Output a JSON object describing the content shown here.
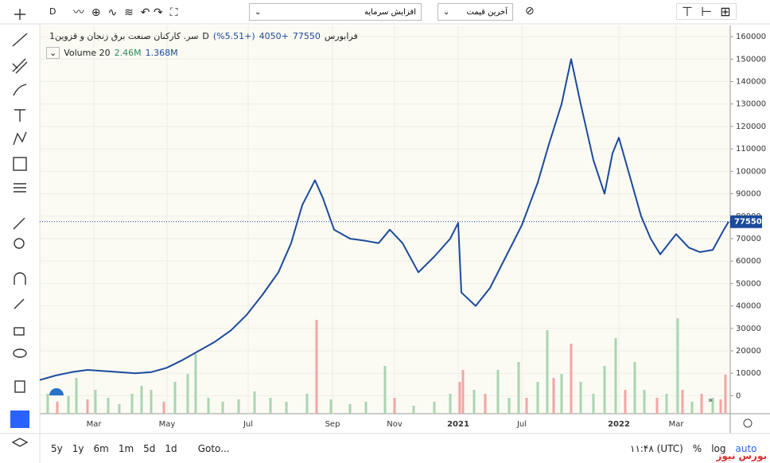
{
  "toolbar": {
    "interval": "D",
    "corporate_actions": "افزایش سرمایه",
    "price_type": "آخرین قیمت"
  },
  "legend": {
    "symbol": "سر. کارکنان صنعت برق زنجان و قزوین",
    "interval": "1D",
    "exchange": "فرابورس",
    "change": "+4050",
    "change_pct": "(+5.51%)",
    "volume_label": "Volume 20",
    "volume_last": "2.46M",
    "volume_ma": "1.368M"
  },
  "chart_data": {
    "type": "line",
    "x": [
      0,
      10,
      20,
      30,
      40,
      50,
      60,
      70,
      80,
      90,
      100,
      110,
      120,
      130,
      140,
      150,
      158,
      165,
      173,
      178,
      185,
      195,
      205,
      213,
      220,
      228,
      238,
      248,
      258,
      263,
      265,
      274,
      283,
      293,
      303,
      313,
      320,
      328,
      334,
      340,
      348,
      355,
      360,
      364,
      370,
      378,
      384,
      390,
      400,
      408,
      415,
      423,
      430,
      433
    ],
    "series": [
      {
        "color": "#1b4a9c",
        "values": [
          7000,
          9000,
          10500,
          11500,
          11000,
          10500,
          10000,
          10500,
          12500,
          16000,
          20000,
          24000,
          29000,
          36000,
          45000,
          55000,
          68000,
          85000,
          96000,
          88000,
          74000,
          70000,
          69000,
          68000,
          74000,
          68000,
          55000,
          62000,
          70000,
          77000,
          46000,
          40000,
          48000,
          62000,
          76000,
          95000,
          112000,
          130000,
          150000,
          130000,
          105000,
          90000,
          108000,
          115000,
          100000,
          80000,
          70000,
          63000,
          72000,
          66000,
          64000,
          65000,
          74000,
          77550
        ]
      }
    ],
    "last_price": 77550,
    "volume": {
      "x": [
        5,
        11,
        18,
        23,
        30,
        35,
        43,
        50,
        58,
        64,
        70,
        78,
        85,
        93,
        98,
        106,
        115,
        125,
        135,
        145,
        155,
        168,
        174,
        183,
        195,
        205,
        217,
        223,
        235,
        248,
        258,
        264,
        266,
        273,
        280,
        288,
        295,
        301,
        306,
        313,
        319,
        323,
        328,
        334,
        340,
        348,
        355,
        362,
        368,
        374,
        380,
        388,
        394,
        401,
        404,
        410,
        416,
        423,
        428,
        431
      ],
      "values": [
        1.25,
        0.75,
        1.1,
        2.25,
        0.9,
        1.5,
        1,
        0.6,
        1.25,
        1.75,
        1.5,
        0.75,
        2,
        2.5,
        3.75,
        1,
        0.75,
        0.9,
        1.4,
        1,
        0.75,
        1.25,
        5.9,
        0.9,
        0.6,
        0.75,
        3,
        1,
        0.5,
        0.75,
        1.25,
        2,
        2.75,
        1.5,
        1.25,
        2.75,
        1,
        3.25,
        1,
        2,
        5.25,
        2.25,
        2.5,
        4.4,
        2,
        1.25,
        3,
        4.75,
        1.5,
        3.25,
        1.5,
        1,
        1.25,
        6,
        1.5,
        0.75,
        1.25,
        1,
        0.9,
        2.46
      ],
      "colors": [
        "#a8d5b0",
        "#f2a5a5",
        "#a8d5b0",
        "#a8d5b0",
        "#f2a5a5",
        "#a8d5b0",
        "#a8d5b0",
        "#a8d5b0",
        "#a8d5b0",
        "#a8d5b0",
        "#a8d5b0",
        "#f2a5a5",
        "#a8d5b0",
        "#a8d5b0",
        "#a8d5b0",
        "#a8d5b0",
        "#a8d5b0",
        "#a8d5b0",
        "#a8d5b0",
        "#a8d5b0",
        "#a8d5b0",
        "#a8d5b0",
        "#f2a5a5",
        "#a8d5b0",
        "#a8d5b0",
        "#a8d5b0",
        "#a8d5b0",
        "#f2a5a5",
        "#a8d5b0",
        "#a8d5b0",
        "#a8d5b0",
        "#f2a5a5",
        "#f2a5a5",
        "#a8d5b0",
        "#f2a5a5",
        "#a8d5b0",
        "#a8d5b0",
        "#a8d5b0",
        "#f2a5a5",
        "#a8d5b0",
        "#a8d5b0",
        "#f2a5a5",
        "#a8d5b0",
        "#f2a5a5",
        "#a8d5b0",
        "#a8d5b0",
        "#a8d5b0",
        "#a8d5b0",
        "#f2a5a5",
        "#a8d5b0",
        "#a8d5b0",
        "#f2a5a5",
        "#a8d5b0",
        "#a8d5b0",
        "#f2a5a5",
        "#a8d5b0",
        "#f2a5a5",
        "#a8d5b0",
        "#f2a5a5",
        "#f2a5a5"
      ]
    },
    "xlim": [
      0,
      434
    ],
    "xticks": [
      {
        "value": 34,
        "label": "Mar"
      },
      {
        "value": 80,
        "label": "May"
      },
      {
        "value": 131,
        "label": "Jul"
      },
      {
        "value": 184,
        "label": "Sep"
      },
      {
        "value": 223,
        "label": "Nov"
      },
      {
        "value": 263,
        "label": "2021"
      },
      {
        "value": 303,
        "label": "Jul"
      },
      {
        "value": 364,
        "label": "2022"
      },
      {
        "value": 400,
        "label": "Mar"
      }
    ],
    "ylim": [
      -8000,
      165000
    ],
    "yticks": [
      0,
      10000,
      20000,
      30000,
      40000,
      50000,
      60000,
      70000,
      80000,
      90000,
      100000,
      110000,
      120000,
      130000,
      140000,
      150000,
      160000
    ],
    "grid": true
  },
  "bottom_bar": {
    "ranges": [
      "5y",
      "1y",
      "6m",
      "1m",
      "5d",
      "1d"
    ],
    "goto": "Goto...",
    "time": "۱۱:۴۸ (UTC)",
    "percent": "%",
    "log": "log",
    "auto": "auto"
  },
  "watermark": "بورس نیوز"
}
